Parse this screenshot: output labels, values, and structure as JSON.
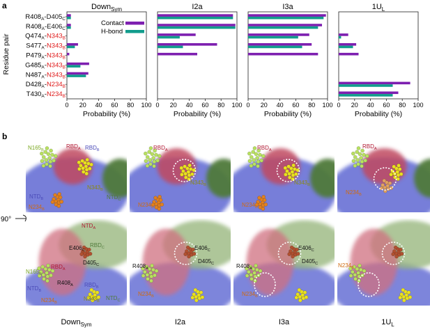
{
  "panel_labels": {
    "a": "a",
    "b": "b"
  },
  "ylabel": "Residue pair",
  "xlabel": "Probability (%)",
  "rotation_label": "90°",
  "colors": {
    "contact": "#7d1fb0",
    "hbond": "#129c8c"
  },
  "chart_data": [
    {
      "type": "bar",
      "orientation": "horizontal",
      "title": "Down_Sym",
      "xlim": [
        0,
        100
      ],
      "xticks": [
        0,
        20,
        40,
        60,
        80,
        100
      ],
      "categories": [
        "R408A–D405C",
        "R408A–E406C",
        "Q474A–N343B",
        "S477A–N343B",
        "P479A–N343B",
        "G485A–N343B",
        "N487A–N343B",
        "D428A–N234B",
        "T430A–N234B"
      ],
      "series": [
        {
          "name": "Contact",
          "values": [
            5,
            5,
            0,
            14,
            3,
            28,
            27,
            0,
            0
          ]
        },
        {
          "name": "H-bond",
          "values": [
            5,
            5,
            0,
            10,
            0,
            17,
            24,
            0,
            0
          ]
        }
      ]
    },
    {
      "type": "bar",
      "orientation": "horizontal",
      "title": "I2a",
      "xlim": [
        0,
        100
      ],
      "xticks": [
        0,
        20,
        40,
        60,
        80,
        100
      ],
      "categories": [
        "R408A–D405C",
        "R408A–E406C",
        "Q474A–N343B",
        "S477A–N343B",
        "P479A–N343B",
        "G485A–N343B",
        "N487A–N343B",
        "D428A–N234B",
        "T430A–N234B"
      ],
      "series": [
        {
          "name": "Contact",
          "values": [
            95,
            98,
            48,
            75,
            50,
            0,
            0,
            0,
            0
          ]
        },
        {
          "name": "H-bond",
          "values": [
            95,
            98,
            28,
            32,
            0,
            0,
            0,
            0,
            0
          ]
        }
      ]
    },
    {
      "type": "bar",
      "orientation": "horizontal",
      "title": "I3a",
      "xlim": [
        0,
        100
      ],
      "xticks": [
        0,
        20,
        40,
        60,
        80,
        100
      ],
      "categories": [
        "R408A–D405C",
        "R408A–E406C",
        "Q474A–N343B",
        "S477A–N343B",
        "P479A–N343B",
        "G485A–N343B",
        "N487A–N343B",
        "D428A–N234B",
        "T430A–N234B"
      ],
      "series": [
        {
          "name": "Contact",
          "values": [
            98,
            93,
            77,
            80,
            88,
            0,
            0,
            0,
            0
          ]
        },
        {
          "name": "H-bond",
          "values": [
            95,
            88,
            63,
            68,
            0,
            0,
            0,
            0,
            0
          ]
        }
      ]
    },
    {
      "type": "bar",
      "orientation": "horizontal",
      "title": "1U_L",
      "xlim": [
        0,
        100
      ],
      "xticks": [
        0,
        20,
        40,
        60,
        80,
        100
      ],
      "categories": [
        "R408A–D405C",
        "R408A–E406C",
        "Q474A–N343B",
        "S477A–N343B",
        "P479A–N343B",
        "G485A–N343B",
        "N487A–N343B",
        "D428A–N234B",
        "T430A–N234B"
      ],
      "series": [
        {
          "name": "Contact",
          "values": [
            0,
            0,
            12,
            22,
            25,
            0,
            0,
            90,
            75
          ]
        },
        {
          "name": "H-bond",
          "values": [
            0,
            0,
            3,
            18,
            0,
            0,
            0,
            68,
            68
          ]
        }
      ]
    }
  ],
  "legend": [
    {
      "label": "Contact",
      "color": "#7d1fb0"
    },
    {
      "label": "H-bond",
      "color": "#129c8c"
    }
  ],
  "residue_labels": [
    {
      "l1": "R408",
      "s1": "A",
      "sep": "-",
      "l2": "D405",
      "s2": "C",
      "red": false
    },
    {
      "l1": "R408",
      "s1": "A",
      "sep": "-",
      "l2": "E406",
      "s2": "C",
      "red": false
    },
    {
      "l1": "Q474",
      "s1": "A",
      "sep": "-",
      "l2": "N343",
      "s2": "B",
      "red": true
    },
    {
      "l1": "S477",
      "s1": "A",
      "sep": "-",
      "l2": "N343",
      "s2": "B",
      "red": true
    },
    {
      "l1": "P479",
      "s1": "A",
      "sep": "-",
      "l2": "N343",
      "s2": "B",
      "red": true
    },
    {
      "l1": "G485",
      "s1": "A",
      "sep": "-",
      "l2": "N343",
      "s2": "B",
      "red": true
    },
    {
      "l1": "N487",
      "s1": "A",
      "sep": "-",
      "l2": "N343",
      "s2": "B",
      "red": true
    },
    {
      "l1": "D428",
      "s1": "A",
      "sep": "-",
      "l2": "N234",
      "s2": "B",
      "red": true
    },
    {
      "l1": "T430",
      "s1": "A",
      "sep": "-",
      "l2": "N234",
      "s2": "B",
      "red": true
    }
  ],
  "titles": [
    {
      "main": "Down",
      "sub": "Sym"
    },
    {
      "main": "I2a",
      "sub": ""
    },
    {
      "main": "I3a",
      "sub": ""
    },
    {
      "main": "1U",
      "sub": "L"
    }
  ],
  "structure_labels": {
    "top": [
      [
        {
          "t": "N165",
          "s": "B"
        },
        {
          "t": "RBD",
          "s": "A"
        },
        {
          "t": "RBD",
          "s": "B"
        },
        {
          "t": "N343",
          "s": "B"
        },
        {
          "t": "NTD",
          "s": "B"
        },
        {
          "t": "NTD",
          "s": "C"
        },
        {
          "t": "N234",
          "s": "B"
        }
      ],
      [
        {
          "t": "RBD",
          "s": "A"
        },
        {
          "t": "N343",
          "s": "B"
        },
        {
          "t": "N234",
          "s": "B"
        }
      ],
      [
        {
          "t": "RBD",
          "s": "A"
        },
        {
          "t": "N343",
          "s": "B"
        },
        {
          "t": "N234",
          "s": "B"
        }
      ],
      [
        {
          "t": "RBD",
          "s": "A"
        },
        {
          "t": "N234",
          "s": "B"
        }
      ]
    ],
    "bottom": [
      [
        {
          "t": "NTD",
          "s": "A"
        },
        {
          "t": "E406",
          "s": "C"
        },
        {
          "t": "RBD",
          "s": "C"
        },
        {
          "t": "D405",
          "s": "C"
        },
        {
          "t": "N165",
          "s": "B"
        },
        {
          "t": "RBD",
          "s": "A"
        },
        {
          "t": "R408",
          "s": "A"
        },
        {
          "t": "NTD",
          "s": "B"
        },
        {
          "t": "RBD",
          "s": "B"
        },
        {
          "t": "N234",
          "s": "B"
        },
        {
          "t": "N343",
          "s": "B"
        },
        {
          "t": "NTD",
          "s": "C"
        }
      ],
      [
        {
          "t": "E406",
          "s": "C"
        },
        {
          "t": "R408",
          "s": "A"
        },
        {
          "t": "D405",
          "s": "C"
        },
        {
          "t": "N234",
          "s": "B"
        }
      ],
      [
        {
          "t": "E406",
          "s": "C"
        },
        {
          "t": "R408",
          "s": "A"
        },
        {
          "t": "D405",
          "s": "C"
        },
        {
          "t": "N234",
          "s": "B"
        }
      ],
      [
        {
          "t": "N234",
          "s": "B"
        }
      ]
    ]
  }
}
